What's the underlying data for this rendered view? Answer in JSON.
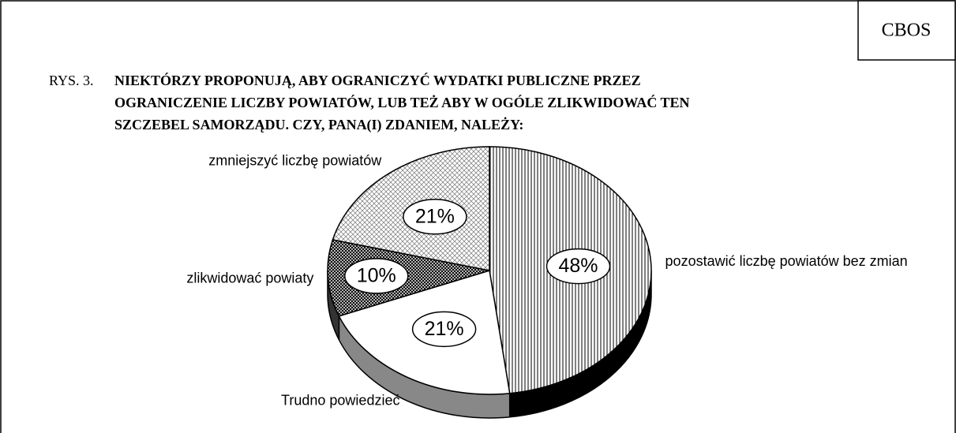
{
  "source": "CBOS",
  "chart_data": {
    "type": "pie",
    "figure_label": "RYS. 3.",
    "title": [
      "NIEKTÓRZY PROPONUJĄ, ABY OGRANICZYĆ WYDATKI PUBLICZNE PRZEZ",
      "OGRANICZENIE LICZBY POWIATÓW, LUB TEŻ ABY W OGÓLE ZLIKWIDOWAĆ TEN",
      "SZCZEBEL SAMORZĄDU. CZY, PANA(I) ZDANIEM, NALEŻY:"
    ],
    "categories": [
      "pozostawić liczbę powiatów bez zmian",
      "Trudno powiedzieć",
      "zlikwidować powiaty",
      "zmniejszyć liczbę powiatów"
    ],
    "values": [
      48,
      21,
      10,
      21
    ],
    "value_labels": [
      "48%",
      "21%",
      "10%",
      "21%"
    ]
  }
}
